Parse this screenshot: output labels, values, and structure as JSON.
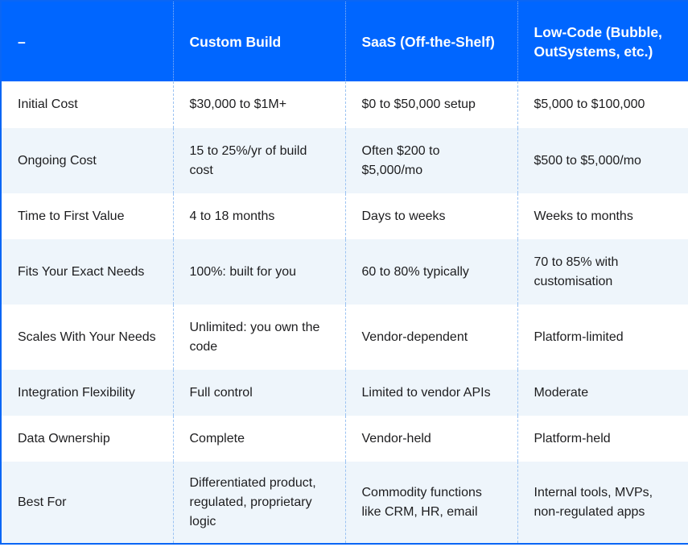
{
  "headers": [
    "–",
    "Custom Build",
    "SaaS (Off-the-Shelf)",
    "Low-Code (Bubble, OutSystems, etc.)"
  ],
  "rows": [
    {
      "label": "Initial Cost",
      "cells": [
        "$30,000 to $1M+",
        "$0 to $50,000 setup",
        "$5,000 to $100,000"
      ]
    },
    {
      "label": "Ongoing Cost",
      "cells": [
        "15 to 25%/yr of build cost",
        "Often $200 to $5,000/mo",
        "$500 to $5,000/mo"
      ]
    },
    {
      "label": "Time to First Value",
      "cells": [
        "4 to 18 months",
        "Days to weeks",
        "Weeks to months"
      ]
    },
    {
      "label": "Fits Your Exact Needs",
      "cells": [
        "100%: built for you",
        "60 to 80% typically",
        "70 to 85% with customisation"
      ]
    },
    {
      "label": "Scales With Your Needs",
      "cells": [
        "Unlimited: you own the code",
        "Vendor-dependent",
        "Platform-limited"
      ]
    },
    {
      "label": "Integration Flexibility",
      "cells": [
        "Full control",
        "Limited to vendor APIs",
        "Moderate"
      ]
    },
    {
      "label": "Data Ownership",
      "cells": [
        "Complete",
        "Vendor-held",
        "Platform-held"
      ]
    },
    {
      "label": "Best For",
      "cells": [
        "Differentiated product, regulated, proprietary logic",
        "Commodity functions like CRM, HR, email",
        "Internal tools, MVPs, non-regulated apps"
      ]
    }
  ]
}
